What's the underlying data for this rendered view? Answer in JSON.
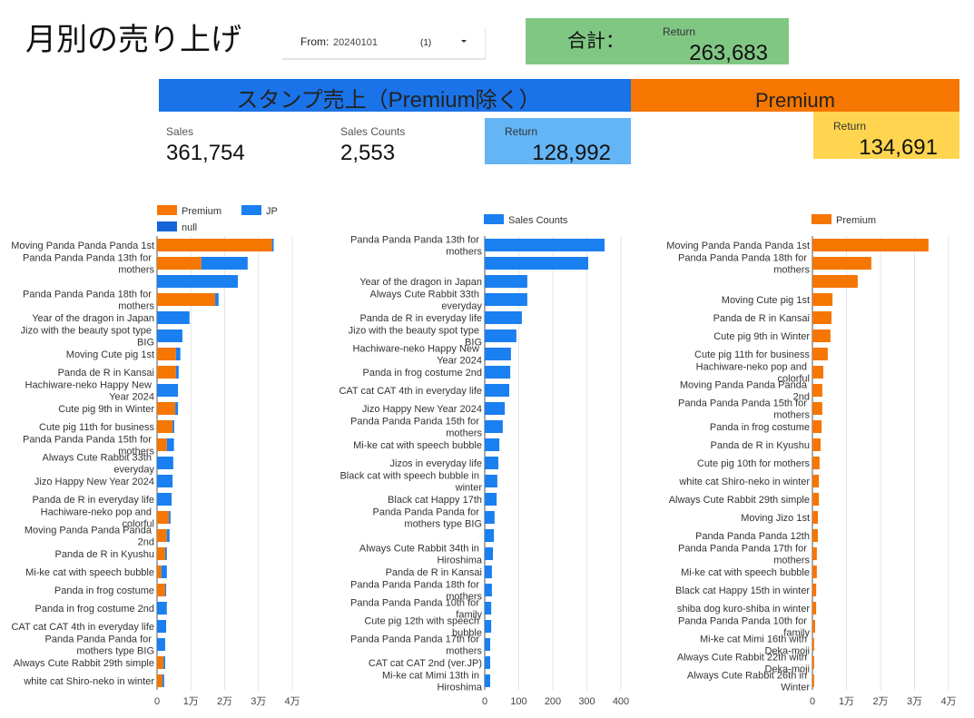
{
  "header": {
    "title": "月別の売り上げ",
    "filter": {
      "label": "From:",
      "value": "20240101",
      "count": "(1)"
    },
    "total": {
      "label": "合計：",
      "sublabel": "Return",
      "value": "263,683"
    }
  },
  "sections": [
    {
      "title": "スタンプ売上（Premium除く）",
      "metrics": [
        {
          "label": "Sales",
          "value": "361,754"
        },
        {
          "label": "Sales Counts",
          "value": "2,553"
        },
        {
          "label": "Return",
          "value": "128,992"
        }
      ]
    },
    {
      "title": "Premium",
      "metrics": [
        {
          "label": "Return",
          "value": "134,691"
        }
      ]
    }
  ],
  "chart_data": [
    {
      "type": "bar",
      "orientation": "horizontal",
      "stacked": true,
      "legend": "top",
      "grid": true,
      "categories": [
        "Moving Panda Panda Panda 1st",
        "Panda Panda Panda 13th for mothers",
        null,
        "Panda Panda Panda 18th for mothers",
        "Year of the dragon in Japan",
        "Jizo with the beauty spot type BIG",
        "Moving Cute pig 1st",
        "Panda de R in Kansai",
        "Hachiware-neko Happy New Year 2024",
        "Cute pig 9th in Winter",
        "Cute pig 11th for business",
        "Panda Panda Panda 15th for mothers",
        "Always Cute Rabbit 33th everyday",
        "Jizo Happy New Year 2024",
        "Panda de R in everyday life",
        "Hachiware-neko pop and colorful",
        "Moving Panda Panda Panda 2nd",
        "Panda de R in Kyushu",
        "Mi-ke cat with speech bubble",
        "Panda in frog costume",
        "Panda in frog costume 2nd",
        "CAT cat CAT 4th in everyday life",
        "Panda Panda Panda for mothers type BIG",
        "Always Cute Rabbit 29th simple",
        "white cat Shiro-neko in winter"
      ],
      "series": [
        {
          "name": "Premium",
          "color": "#f57600",
          "values": [
            34000,
            13100,
            null,
            17200,
            null,
            null,
            5600,
            5600,
            null,
            5400,
            4600,
            2900,
            null,
            null,
            null,
            3500,
            2900,
            2400,
            1300,
            2400,
            null,
            null,
            null,
            1900,
            1600
          ]
        },
        {
          "name": "JP",
          "color": "#1a7ff0",
          "values": [
            500,
            13700,
            23900,
            1000,
            9600,
            7500,
            1300,
            800,
            6200,
            800,
            500,
            2100,
            4800,
            4600,
            4300,
            500,
            800,
            500,
            1600,
            300,
            2900,
            2700,
            2400,
            500,
            500
          ]
        },
        {
          "name": "null",
          "color": "#1565d8",
          "values": [
            null,
            null,
            null,
            null,
            null,
            null,
            null,
            null,
            null,
            null,
            null,
            null,
            null,
            null,
            null,
            null,
            null,
            null,
            null,
            null,
            null,
            null,
            null,
            null,
            null
          ]
        }
      ],
      "xlim": [
        0,
        40000
      ],
      "xticks": [
        0,
        {
          "value": 10000,
          "label": "1万"
        },
        {
          "value": 20000,
          "label": "2万"
        },
        {
          "value": 30000,
          "label": "3万"
        },
        {
          "value": 40000,
          "label": "4万"
        }
      ]
    },
    {
      "type": "bar",
      "orientation": "horizontal",
      "stacked": false,
      "legend": "top",
      "grid": true,
      "categories": [
        "Panda Panda Panda 13th for mothers",
        null,
        "Year of the dragon in Japan",
        "Always Cute Rabbit 33th everyday",
        "Panda de R in everyday life",
        "Jizo with the beauty spot type BIG",
        "Hachiware-neko Happy New Year 2024",
        "Panda in frog costume 2nd",
        "CAT cat CAT 4th in everyday life",
        "Jizo Happy New Year 2024",
        "Panda Panda Panda 15th for mothers",
        "Mi-ke cat with speech bubble",
        "Jizos in everyday life",
        "Black cat with speech bubble in winter",
        "Black cat Happy 17th",
        "Panda Panda Panda for mothers type BIG",
        null,
        "Always Cute Rabbit 34th in Hiroshima",
        "Panda de R in Kansai",
        "Panda Panda Panda 18th for mothers",
        "Panda Panda Panda 10th for family",
        "Cute pig 12th with speech bubble",
        "Panda Panda Panda 17th for mothers",
        "CAT cat CAT 2nd (ver.JP)",
        "Mi-ke cat Mimi 13th in Hiroshima"
      ],
      "series": [
        {
          "name": "Sales Counts",
          "color": "#1a7ff0",
          "values": [
            352,
            304,
            125,
            125,
            109,
            93,
            77,
            75,
            72,
            59,
            53,
            43,
            40,
            37,
            35,
            29,
            27,
            24,
            21,
            21,
            19,
            19,
            16,
            16,
            16
          ]
        }
      ],
      "xlim": [
        0,
        400
      ],
      "xticks": [
        0,
        100,
        200,
        300,
        400
      ]
    },
    {
      "type": "bar",
      "orientation": "horizontal",
      "stacked": false,
      "legend": "top",
      "grid": true,
      "categories": [
        "Moving Panda Panda Panda 1st",
        "Panda Panda Panda 18th for mothers",
        null,
        "Moving Cute pig 1st",
        "Panda de R in Kansai",
        "Cute pig 9th in Winter",
        "Cute pig 11th for business",
        "Hachiware-neko pop and colorful",
        "Moving Panda Panda Panda 2nd",
        "Panda Panda Panda 15th for mothers",
        "Panda in frog costume",
        "Panda de R in Kyushu",
        "Cute pig 10th for mothers",
        "white cat Shiro-neko in winter",
        "Always Cute Rabbit 29th simple",
        "Moving Jizo 1st",
        "Panda Panda Panda 12th",
        "Panda Panda Panda 17th for mothers",
        "Mi-ke cat with speech bubble",
        "Black cat Happy 15th in winter",
        "shiba dog kuro-shiba in winter",
        "Panda Panda Panda 10th for family",
        "Mi-ke cat Mimi 16th with Deka-moji",
        "Always Cute Rabbit 22th with Deka-moji",
        "Always Cute Rabbit 26th in Winter"
      ],
      "series": [
        {
          "name": "Premium",
          "color": "#f57600",
          "values": [
            34100,
            17300,
            13300,
            5900,
            5600,
            5300,
            4500,
            3200,
            2900,
            2900,
            2700,
            2400,
            2100,
            1900,
            1900,
            1600,
            1600,
            1300,
            1300,
            1100,
            1100,
            800,
            500,
            500,
            500
          ]
        }
      ],
      "xlim": [
        0,
        40000
      ],
      "xticks": [
        0,
        {
          "value": 10000,
          "label": "1万"
        },
        {
          "value": 20000,
          "label": "2万"
        },
        {
          "value": 30000,
          "label": "3万"
        },
        {
          "value": 40000,
          "label": "4万"
        }
      ]
    }
  ]
}
